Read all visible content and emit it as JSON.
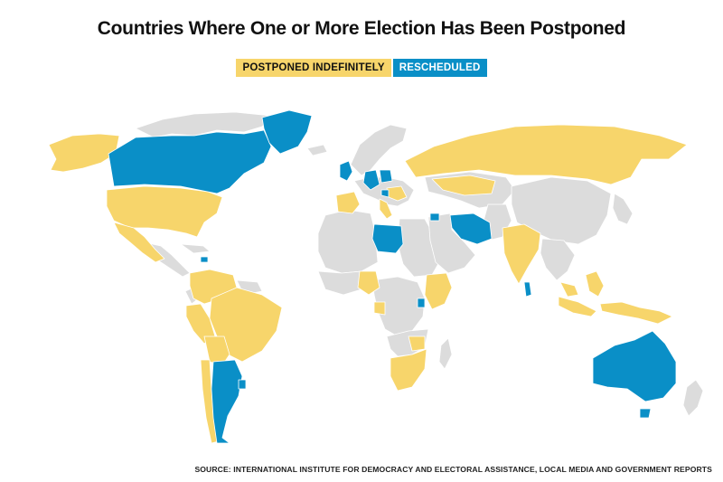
{
  "title": "Countries Where One or More Election Has Been Postponed",
  "legend": {
    "postponed_label": "POSTPONED INDEFINITELY",
    "rescheduled_label": "RESCHEDULED"
  },
  "colors": {
    "postponed": "#f7d56b",
    "rescheduled": "#0a8fc7",
    "other": "#dcdcdc",
    "border": "#ffffff"
  },
  "map": {
    "postponed_indefinitely": [
      "United States",
      "Alaska (US)",
      "Mexico",
      "Colombia",
      "Venezuela",
      "Peru",
      "Bolivia",
      "Brazil",
      "Chile",
      "Paraguay",
      "Russia",
      "Spain",
      "France",
      "Italy",
      "Serbia",
      "Hungary",
      "Kazakhstan",
      "India",
      "Nepal",
      "Ethiopia",
      "Nigeria",
      "Gabon",
      "Kenya",
      "South Africa",
      "Zimbabwe",
      "Indonesia",
      "Papua New Guinea",
      "Malaysia",
      "Philippines"
    ],
    "rescheduled": [
      "Canada",
      "Greenland",
      "United Kingdom",
      "Germany",
      "Poland",
      "Croatia",
      "Libya",
      "Syria",
      "Iran",
      "Dominican Republic",
      "Argentina",
      "Uruguay",
      "Sri Lanka",
      "Uganda",
      "Australia",
      "Tasmania",
      "Greece",
      "Cuba"
    ]
  },
  "source": "SOURCE: INTERNATIONAL INSTITUTE FOR DEMOCRACY AND ELECTORAL ASSISTANCE, LOCAL MEDIA AND GOVERNMENT REPORTS"
}
